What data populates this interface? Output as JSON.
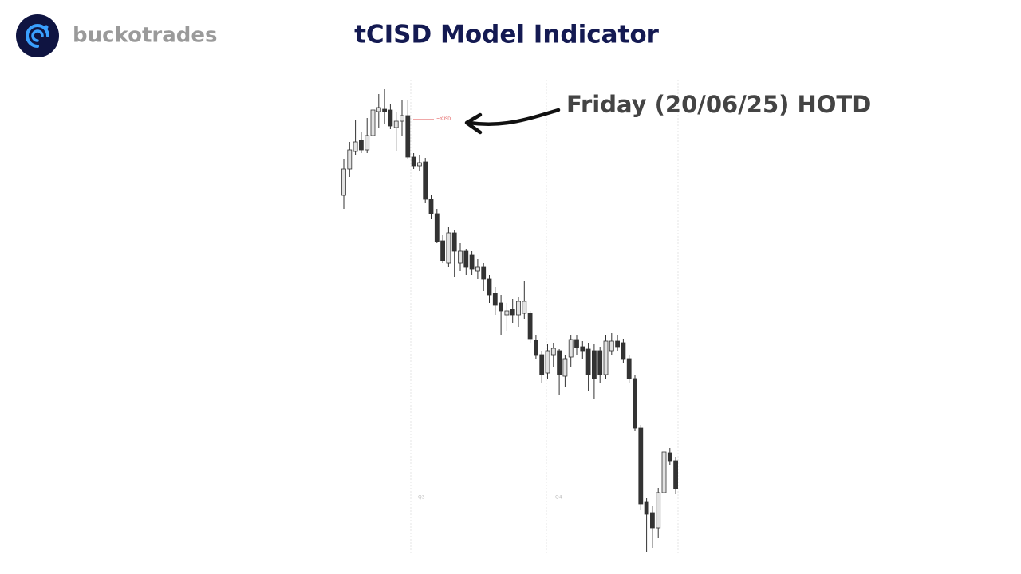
{
  "brand": "buckotrades",
  "chart_data": {
    "type": "candlestick",
    "title": "tCISD Model Indicator",
    "annotation": "Friday (20/06/25) HOTD",
    "level_label": "~tCISD",
    "session_labels": [
      "Q3",
      "Q4"
    ],
    "up_color": "#e2e2e2",
    "down_color": "#333333",
    "ylim": [
      0,
      600
    ],
    "ohlc": [
      [
        455,
        500,
        438,
        488
      ],
      [
        488,
        522,
        478,
        512
      ],
      [
        510,
        550,
        505,
        522
      ],
      [
        524,
        535,
        508,
        512
      ],
      [
        512,
        552,
        508,
        530
      ],
      [
        530,
        570,
        525,
        562
      ],
      [
        560,
        582,
        540,
        565
      ],
      [
        563,
        588,
        545,
        560
      ],
      [
        562,
        570,
        538,
        542
      ],
      [
        540,
        560,
        510,
        548
      ],
      [
        548,
        575,
        530,
        555
      ],
      [
        555,
        575,
        500,
        503
      ],
      [
        503,
        508,
        488,
        492
      ],
      [
        492,
        505,
        485,
        496
      ],
      [
        497,
        502,
        445,
        450
      ],
      [
        450,
        455,
        425,
        432
      ],
      [
        432,
        438,
        395,
        397
      ],
      [
        398,
        405,
        370,
        373
      ],
      [
        370,
        415,
        365,
        408
      ],
      [
        408,
        412,
        352,
        385
      ],
      [
        370,
        395,
        360,
        385
      ],
      [
        385,
        388,
        355,
        365
      ],
      [
        380,
        385,
        355,
        362
      ],
      [
        360,
        375,
        350,
        365
      ],
      [
        365,
        370,
        335,
        350
      ],
      [
        350,
        355,
        320,
        330
      ],
      [
        332,
        340,
        305,
        317
      ],
      [
        320,
        330,
        280,
        310
      ],
      [
        305,
        320,
        285,
        310
      ],
      [
        312,
        325,
        295,
        305
      ],
      [
        305,
        328,
        290,
        322
      ],
      [
        307,
        348,
        300,
        322
      ],
      [
        307,
        310,
        270,
        275
      ],
      [
        273,
        280,
        250,
        255
      ],
      [
        255,
        260,
        220,
        230
      ],
      [
        232,
        268,
        225,
        260
      ],
      [
        255,
        270,
        240,
        263
      ],
      [
        260,
        262,
        205,
        230
      ],
      [
        228,
        255,
        215,
        250
      ],
      [
        252,
        280,
        240,
        274
      ],
      [
        274,
        280,
        255,
        264
      ],
      [
        265,
        272,
        250,
        260
      ],
      [
        262,
        270,
        210,
        230
      ],
      [
        260,
        268,
        200,
        225
      ],
      [
        260,
        265,
        220,
        230
      ],
      [
        230,
        280,
        225,
        272
      ],
      [
        260,
        282,
        255,
        272
      ],
      [
        272,
        280,
        260,
        265
      ],
      [
        270,
        275,
        245,
        250
      ],
      [
        250,
        255,
        220,
        225
      ],
      [
        225,
        230,
        160,
        163
      ],
      [
        163,
        167,
        60,
        68
      ],
      [
        70,
        75,
        8,
        55
      ],
      [
        57,
        65,
        12,
        38
      ],
      [
        38,
        88,
        25,
        82
      ],
      [
        82,
        137,
        78,
        133
      ],
      [
        132,
        138,
        117,
        122
      ],
      [
        122,
        127,
        80,
        87
      ]
    ]
  }
}
